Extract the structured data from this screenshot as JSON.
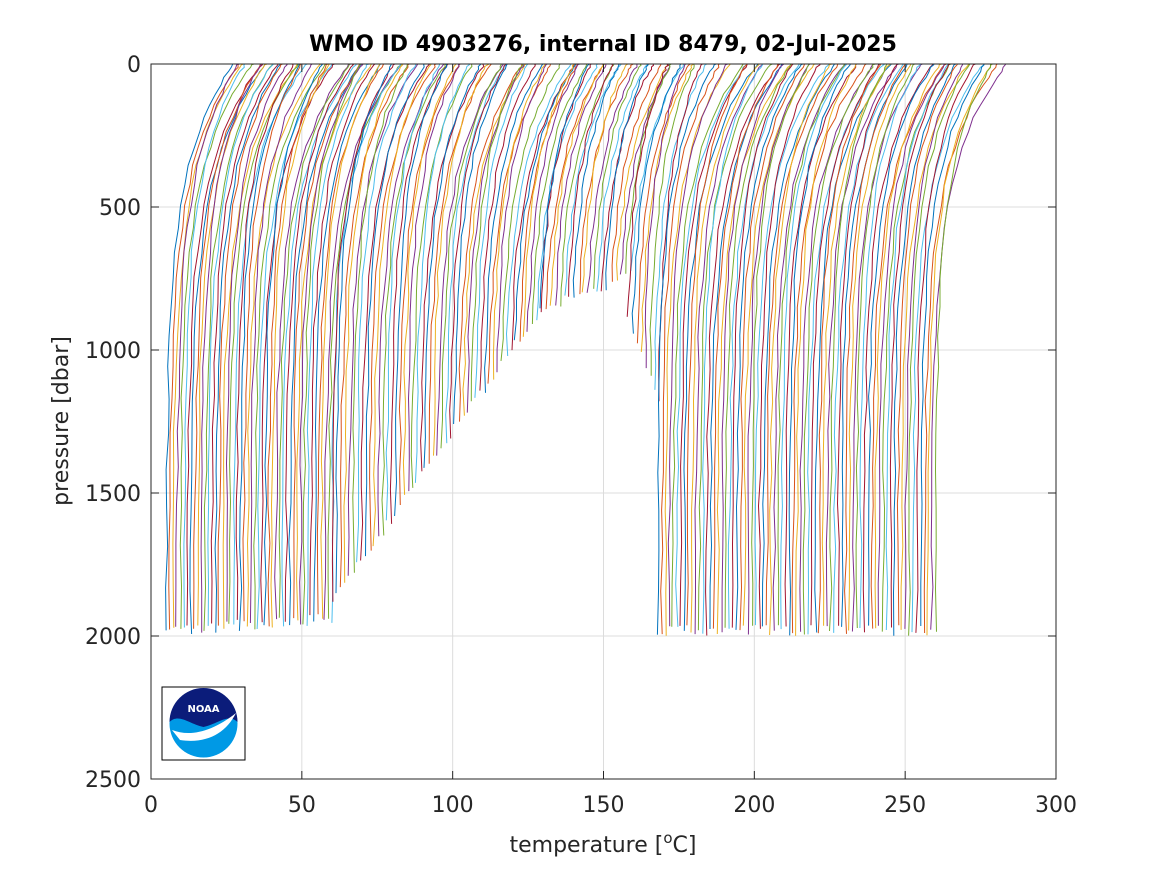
{
  "chart_data": {
    "type": "line",
    "title": "WMO ID 4903276, internal ID 8479, 02-Jul-2025",
    "xlabel_main": "temperature [",
    "xlabel_sup": "o",
    "xlabel_end": "C]",
    "ylabel": "pressure [dbar]",
    "xlim": [
      0,
      300
    ],
    "ylim": [
      0,
      2500
    ],
    "y_reversed": true,
    "grid": true,
    "x_ticks": [
      "0",
      "50",
      "100",
      "150",
      "200",
      "250",
      "300"
    ],
    "y_ticks": [
      "0",
      "500",
      "1000",
      "1500",
      "2000",
      "2500"
    ],
    "series_colors": [
      "#0072bd",
      "#d95319",
      "#edb120",
      "#7e2f8e",
      "#77ac30",
      "#4dbeee",
      "#a2142f"
    ],
    "profile_groups": [
      {
        "x_start": 5,
        "x_end": 60,
        "count": 48,
        "bottom_start": 2000,
        "bottom_end": 1960,
        "surface_offset": 22
      },
      {
        "x_start": 60,
        "x_end": 128,
        "count": 50,
        "bottom_start": 1900,
        "bottom_end": 880,
        "surface_offset": 20
      },
      {
        "x_start": 128,
        "x_end": 157,
        "count": 20,
        "bottom_start": 880,
        "bottom_end": 760,
        "surface_offset": 18
      },
      {
        "x_start": 157,
        "x_end": 168,
        "count": 8,
        "bottom_start": 900,
        "bottom_end": 1200,
        "surface_offset": 16
      },
      {
        "x_start": 168,
        "x_end": 260,
        "count": 75,
        "bottom_start": 2000,
        "bottom_end": 2000,
        "surface_offset": 22
      }
    ]
  },
  "logo": {
    "text": "NOAA",
    "colors": {
      "dark": "#0b1c7a",
      "light": "#0099e5",
      "white": "#ffffff"
    }
  }
}
